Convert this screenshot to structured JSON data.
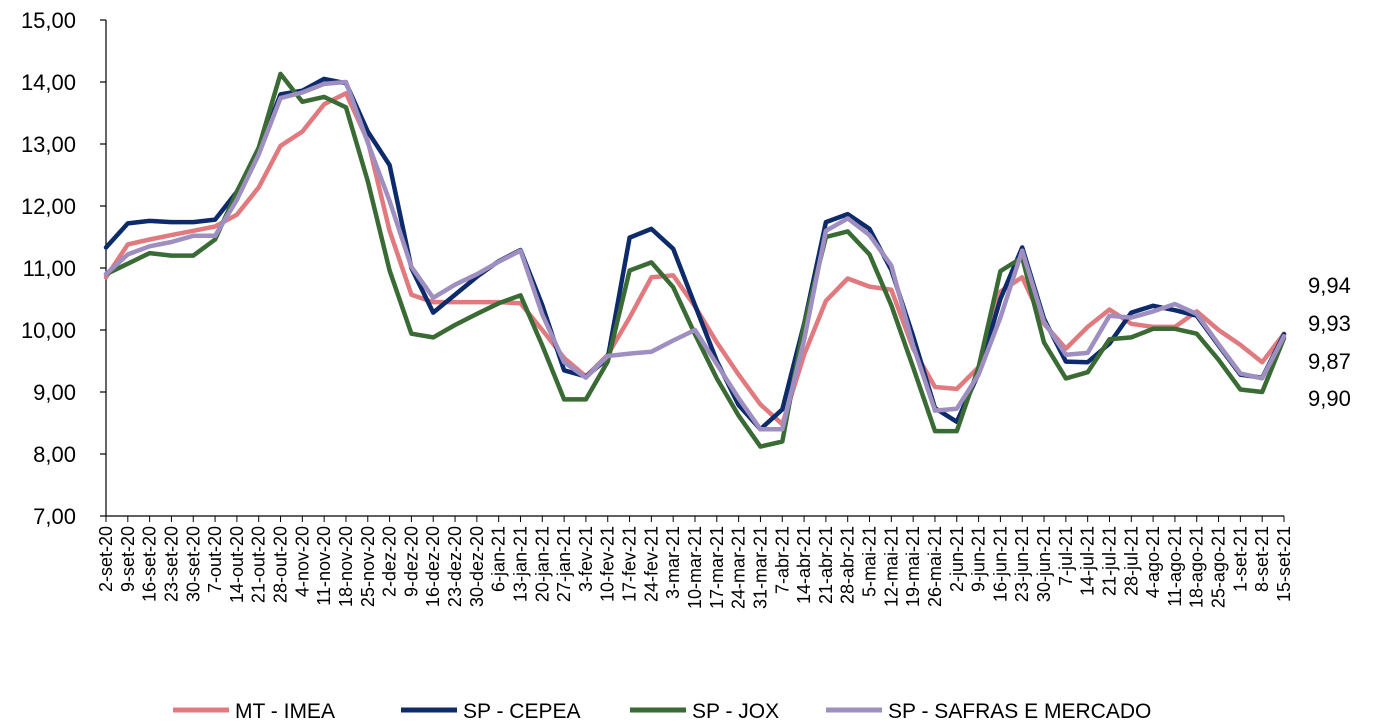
{
  "chart_data": {
    "type": "line",
    "ylim": [
      7,
      15
    ],
    "yticks": [
      "7,00",
      "8,00",
      "9,00",
      "10,00",
      "11,00",
      "12,00",
      "13,00",
      "14,00",
      "15,00"
    ],
    "grid": false,
    "legend_position": "bottom",
    "categories": [
      "2-set-20",
      "9-set-20",
      "16-set-20",
      "23-set-20",
      "30-set-20",
      "7-out-20",
      "14-out-20",
      "21-out-20",
      "28-out-20",
      "4-nov-20",
      "11-nov-20",
      "18-nov-20",
      "25-nov-20",
      "2-dez-20",
      "9-dez-20",
      "16-dez-20",
      "23-dez-20",
      "30-dez-20",
      "6-jan-21",
      "13-jan-21",
      "20-jan-21",
      "27-jan-21",
      "3-fev-21",
      "10-fev-21",
      "17-fev-21",
      "24-fev-21",
      "3-mar-21",
      "10-mar-21",
      "17-mar-21",
      "24-mar-21",
      "31-mar-21",
      "7-abr-21",
      "14-abr-21",
      "21-abr-21",
      "28-abr-21",
      "5-mai-21",
      "12-mai-21",
      "19-mai-21",
      "26-mai-21",
      "2-jun-21",
      "9-jun-21",
      "16-jun-21",
      "23-jun-21",
      "30-jun-21",
      "7-jul-21",
      "14-jul-21",
      "21-jul-21",
      "28-jul-21",
      "4-ago-21",
      "11-ago-21",
      "18-ago-21",
      "25-ago-21",
      "1-set-21",
      "8-set-21",
      "15-set-21"
    ],
    "end_labels": [
      "9,94",
      "9,93",
      "9,87",
      "9,90"
    ],
    "series": [
      {
        "name": "MT - IMEA",
        "color": "#E07A7F",
        "values": [
          10.85,
          11.38,
          11.46,
          11.53,
          11.6,
          11.67,
          11.86,
          12.3,
          12.97,
          13.2,
          13.64,
          13.82,
          13.05,
          11.6,
          10.57,
          10.45,
          10.45,
          10.45,
          10.45,
          10.43,
          10.0,
          9.55,
          9.25,
          9.6,
          10.2,
          10.85,
          10.88,
          10.38,
          9.8,
          9.28,
          8.8,
          8.48,
          9.6,
          10.47,
          10.83,
          10.7,
          10.65,
          9.7,
          9.08,
          9.05,
          9.4,
          10.62,
          10.85,
          10.1,
          9.7,
          10.05,
          10.33,
          10.1,
          10.05,
          10.05,
          10.3,
          10.0,
          9.76,
          9.48,
          9.94
        ]
      },
      {
        "name": "SP - CEPEA",
        "color": "#0D2B6B",
        "values": [
          11.33,
          11.72,
          11.76,
          11.74,
          11.74,
          11.78,
          12.23,
          12.91,
          13.8,
          13.86,
          14.05,
          13.98,
          13.2,
          12.66,
          11.0,
          10.28,
          10.57,
          10.86,
          11.11,
          11.29,
          10.4,
          9.35,
          9.25,
          9.54,
          11.49,
          11.63,
          11.31,
          10.4,
          9.5,
          8.79,
          8.4,
          8.72,
          10.1,
          11.74,
          11.87,
          11.63,
          10.97,
          9.9,
          8.74,
          8.52,
          9.3,
          10.5,
          11.33,
          10.18,
          9.49,
          9.48,
          9.78,
          10.28,
          10.39,
          10.32,
          10.23,
          9.75,
          9.28,
          9.23,
          9.93
        ]
      },
      {
        "name": "SP - JOX",
        "color": "#3A6B35",
        "values": [
          10.9,
          11.07,
          11.24,
          11.2,
          11.2,
          11.46,
          12.23,
          12.94,
          14.13,
          13.68,
          13.76,
          13.59,
          12.4,
          10.96,
          9.94,
          9.88,
          10.08,
          10.26,
          10.43,
          10.56,
          9.75,
          8.88,
          8.88,
          9.49,
          10.96,
          11.09,
          10.69,
          9.93,
          9.22,
          8.62,
          8.12,
          8.2,
          10.09,
          11.5,
          11.59,
          11.22,
          10.4,
          9.4,
          8.37,
          8.37,
          9.4,
          10.95,
          11.17,
          9.8,
          9.22,
          9.32,
          9.85,
          9.88,
          10.02,
          10.02,
          9.94,
          9.52,
          9.04,
          9.0,
          9.87
        ]
      },
      {
        "name": "SP - SAFRAS E MERCADO",
        "color": "#9E8FC0",
        "values": [
          10.9,
          11.22,
          11.35,
          11.42,
          11.52,
          11.52,
          12.1,
          12.83,
          13.74,
          13.83,
          13.97,
          14.0,
          13.02,
          12.08,
          11.02,
          10.52,
          10.73,
          10.9,
          11.1,
          11.28,
          10.25,
          9.48,
          9.23,
          9.58,
          9.62,
          9.65,
          9.83,
          10.0,
          9.45,
          8.9,
          8.4,
          8.4,
          9.84,
          11.6,
          11.8,
          11.53,
          11.04,
          9.75,
          8.7,
          8.73,
          9.28,
          10.2,
          11.28,
          10.13,
          9.6,
          9.63,
          10.23,
          10.2,
          10.3,
          10.42,
          10.26,
          9.77,
          9.3,
          9.22,
          9.9
        ]
      }
    ]
  }
}
